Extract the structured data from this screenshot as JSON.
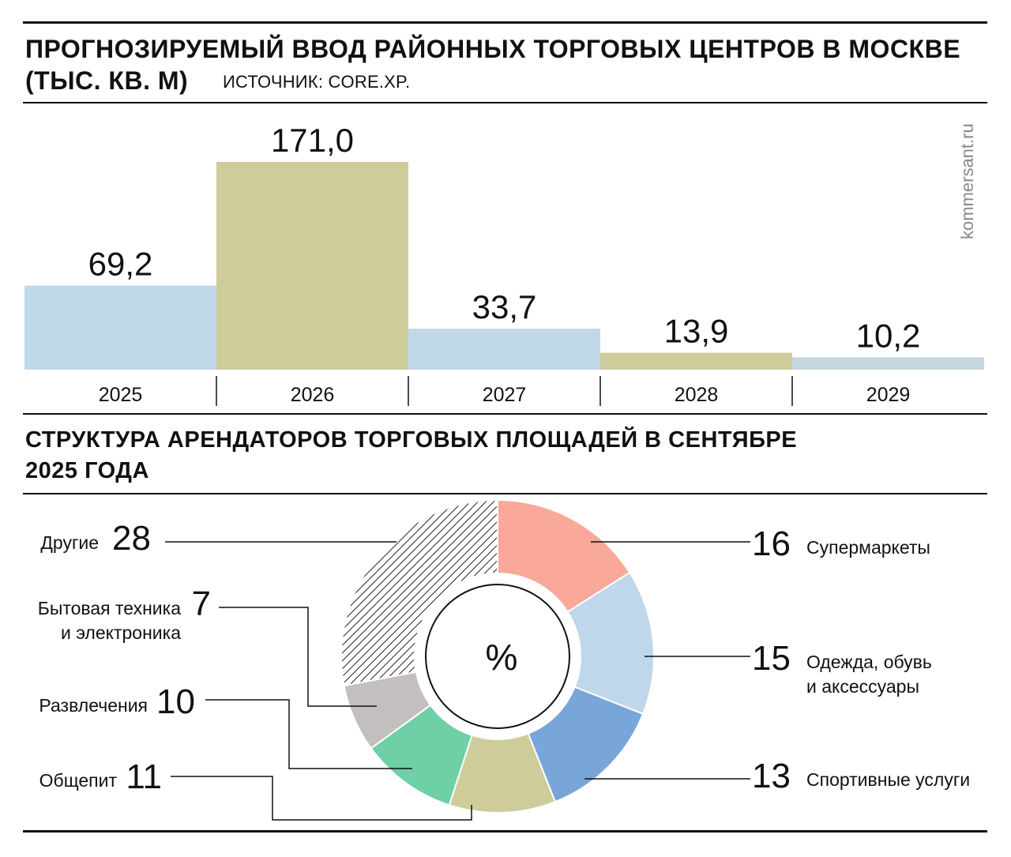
{
  "header": {
    "title_line1": "ПРОГНОЗИРУЕМЫЙ ВВОД РАЙОННЫХ ТОРГОВЫХ ЦЕНТРОВ В МОСКВЕ",
    "title_line2": "(ТЫС. КВ. М)",
    "source": "ИСТОЧНИК: CORE.XP.",
    "brand": "kommersant.ru"
  },
  "section2": {
    "title_line1": "СТРУКТУРА АРЕНДАТОРОВ ТОРГОВЫХ ПЛОЩАДЕЙ В СЕНТЯБРЕ",
    "title_line2": "2025 ГОДА"
  },
  "chart_data": [
    {
      "type": "bar",
      "categories": [
        "2025",
        "2026",
        "2027",
        "2028",
        "2029"
      ],
      "values": [
        69.2,
        171.0,
        33.7,
        13.9,
        10.2
      ],
      "value_labels": [
        "69,2",
        "171,0",
        "33,7",
        "13,9",
        "10,2"
      ],
      "colors": [
        "#bfd8ea",
        "#cdcc9a",
        "#bfd8ea",
        "#cdcc9a",
        "#c6d6e1"
      ],
      "ylim": [
        0,
        171
      ],
      "grid": false,
      "legend": "none"
    },
    {
      "type": "pie",
      "center_label": "%",
      "slices": [
        {
          "label": "Супермаркеты",
          "value": 16,
          "color": "#f9a89a"
        },
        {
          "label": "Одежда, обувь и аксессуары",
          "label_lines": [
            "Одежда, обувь",
            "и аксессуары"
          ],
          "value": 15,
          "color": "#bed7ea"
        },
        {
          "label": "Спортивные услуги",
          "value": 13,
          "color": "#79a6d9"
        },
        {
          "label": "Общепит",
          "value": 11,
          "color": "#cdcc9a"
        },
        {
          "label": "Развлечения",
          "value": 10,
          "color": "#6fcfa6"
        },
        {
          "label": "Бытовая техника и электроника",
          "label_lines": [
            "Бытовая техника",
            "и электроника"
          ],
          "value": 7,
          "color": "#c4bfbf"
        },
        {
          "label": "Другие",
          "value": 28,
          "color": "hatched"
        }
      ],
      "legend": "callouts-left-right"
    }
  ]
}
